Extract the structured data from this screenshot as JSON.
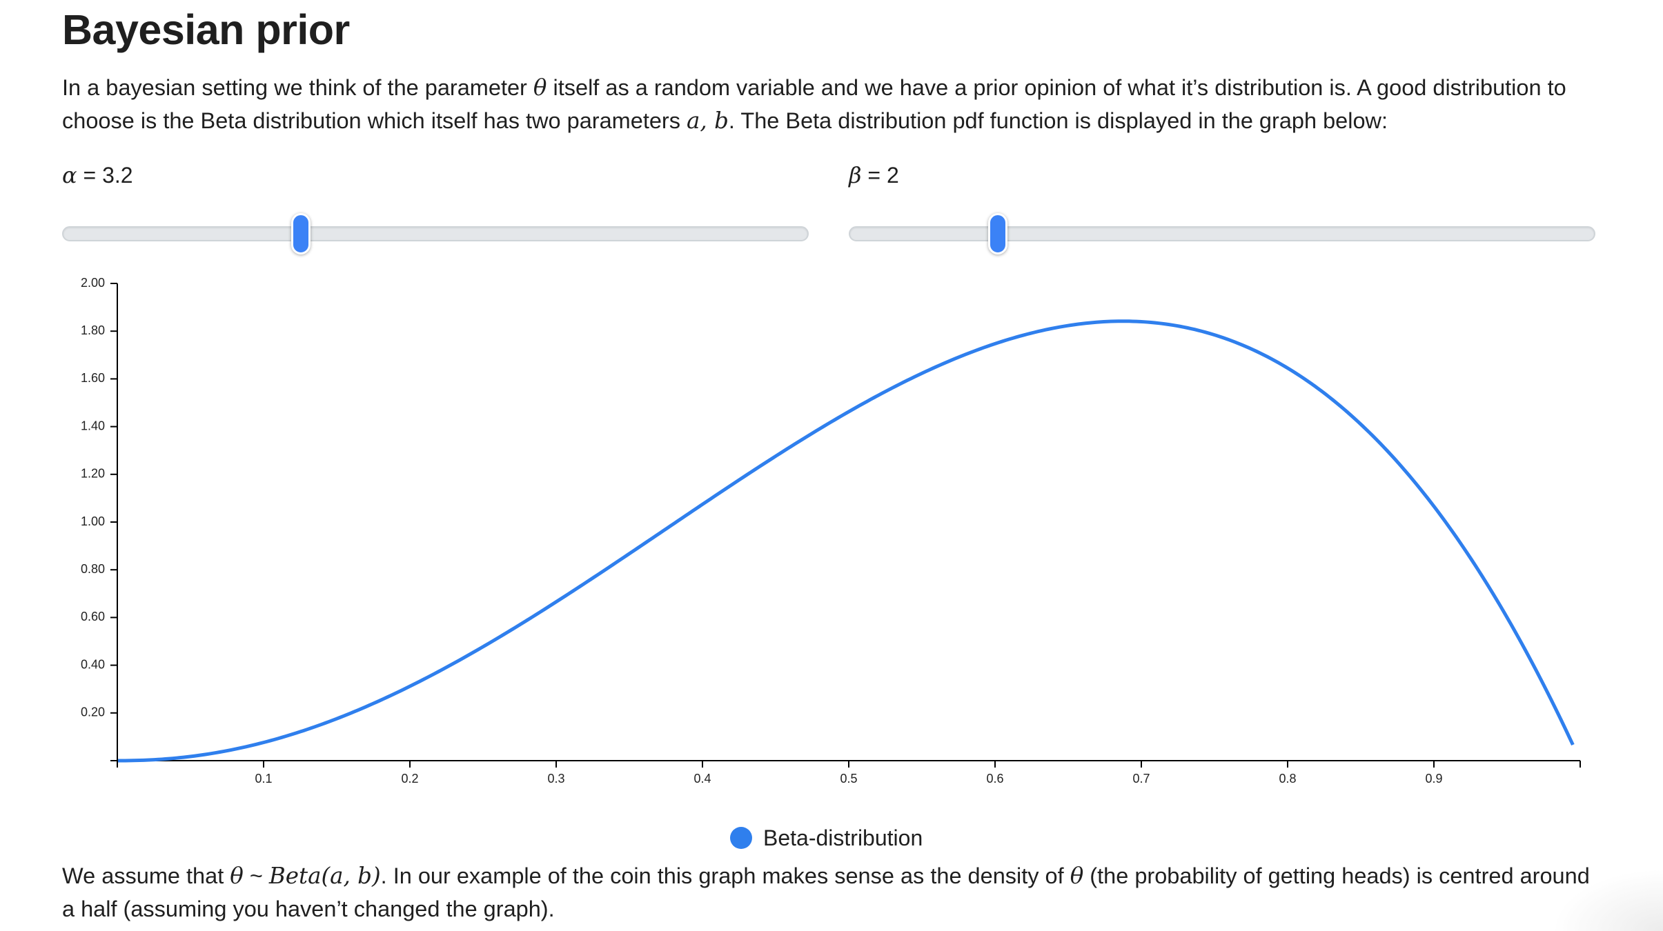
{
  "heading": "Bayesian prior",
  "intro": {
    "part1": "In a bayesian setting we think of the parameter ",
    "theta": "θ",
    "part2": " itself as a random variable and we have a prior opinion of what it’s distribution is. A good distribution to choose is the Beta distribution which itself has two parameters ",
    "ab": "a, b",
    "part3": ". The Beta distribution pdf function is displayed in the graph below:"
  },
  "controls": {
    "alpha": {
      "symbol": "α",
      "eq": " = ",
      "value_text": "3.2",
      "value": 3.2,
      "position_fraction": 0.32
    },
    "beta": {
      "symbol": "β",
      "eq": " = ",
      "value_text": "2",
      "value": 2,
      "position_fraction": 0.2
    }
  },
  "chart_data": {
    "type": "line",
    "title": "",
    "xlabel": "",
    "ylabel": "",
    "xlim": [
      0,
      1
    ],
    "ylim": [
      0,
      2
    ],
    "x_ticks": [
      "0.1",
      "0.2",
      "0.3",
      "0.4",
      "0.5",
      "0.6",
      "0.7",
      "0.8",
      "0.9"
    ],
    "y_ticks": [
      "2.00",
      "1.80",
      "1.60",
      "1.40",
      "1.20",
      "1.00",
      "0.80",
      "0.60",
      "0.40",
      "0.20"
    ],
    "grid": false,
    "legend_position": "bottom-center",
    "series": [
      {
        "name": "Beta-distribution",
        "color": "#2f7fed",
        "x": [
          0.0,
          0.05,
          0.1,
          0.15,
          0.2,
          0.25,
          0.3,
          0.35,
          0.4,
          0.45,
          0.5,
          0.55,
          0.6,
          0.65,
          0.7,
          0.75,
          0.8,
          0.85,
          0.9,
          0.95,
          0.995
        ],
        "y": [
          0.0,
          0.02,
          0.08,
          0.18,
          0.32,
          0.48,
          0.67,
          0.87,
          1.08,
          1.28,
          1.47,
          1.63,
          1.76,
          1.83,
          1.84,
          1.79,
          1.63,
          1.37,
          0.98,
          0.52,
          0.03
        ]
      }
    ]
  },
  "outro": {
    "part1": "We assume that ",
    "theta": "θ",
    "tilde": " ~ ",
    "beta_expr": "Beta(a, b)",
    "part2": ". In our example of the coin this graph makes sense as the density of ",
    "theta2": "θ",
    "part3": " (the probability of getting heads) is centred around a half (assuming you haven’t changed the graph)."
  }
}
